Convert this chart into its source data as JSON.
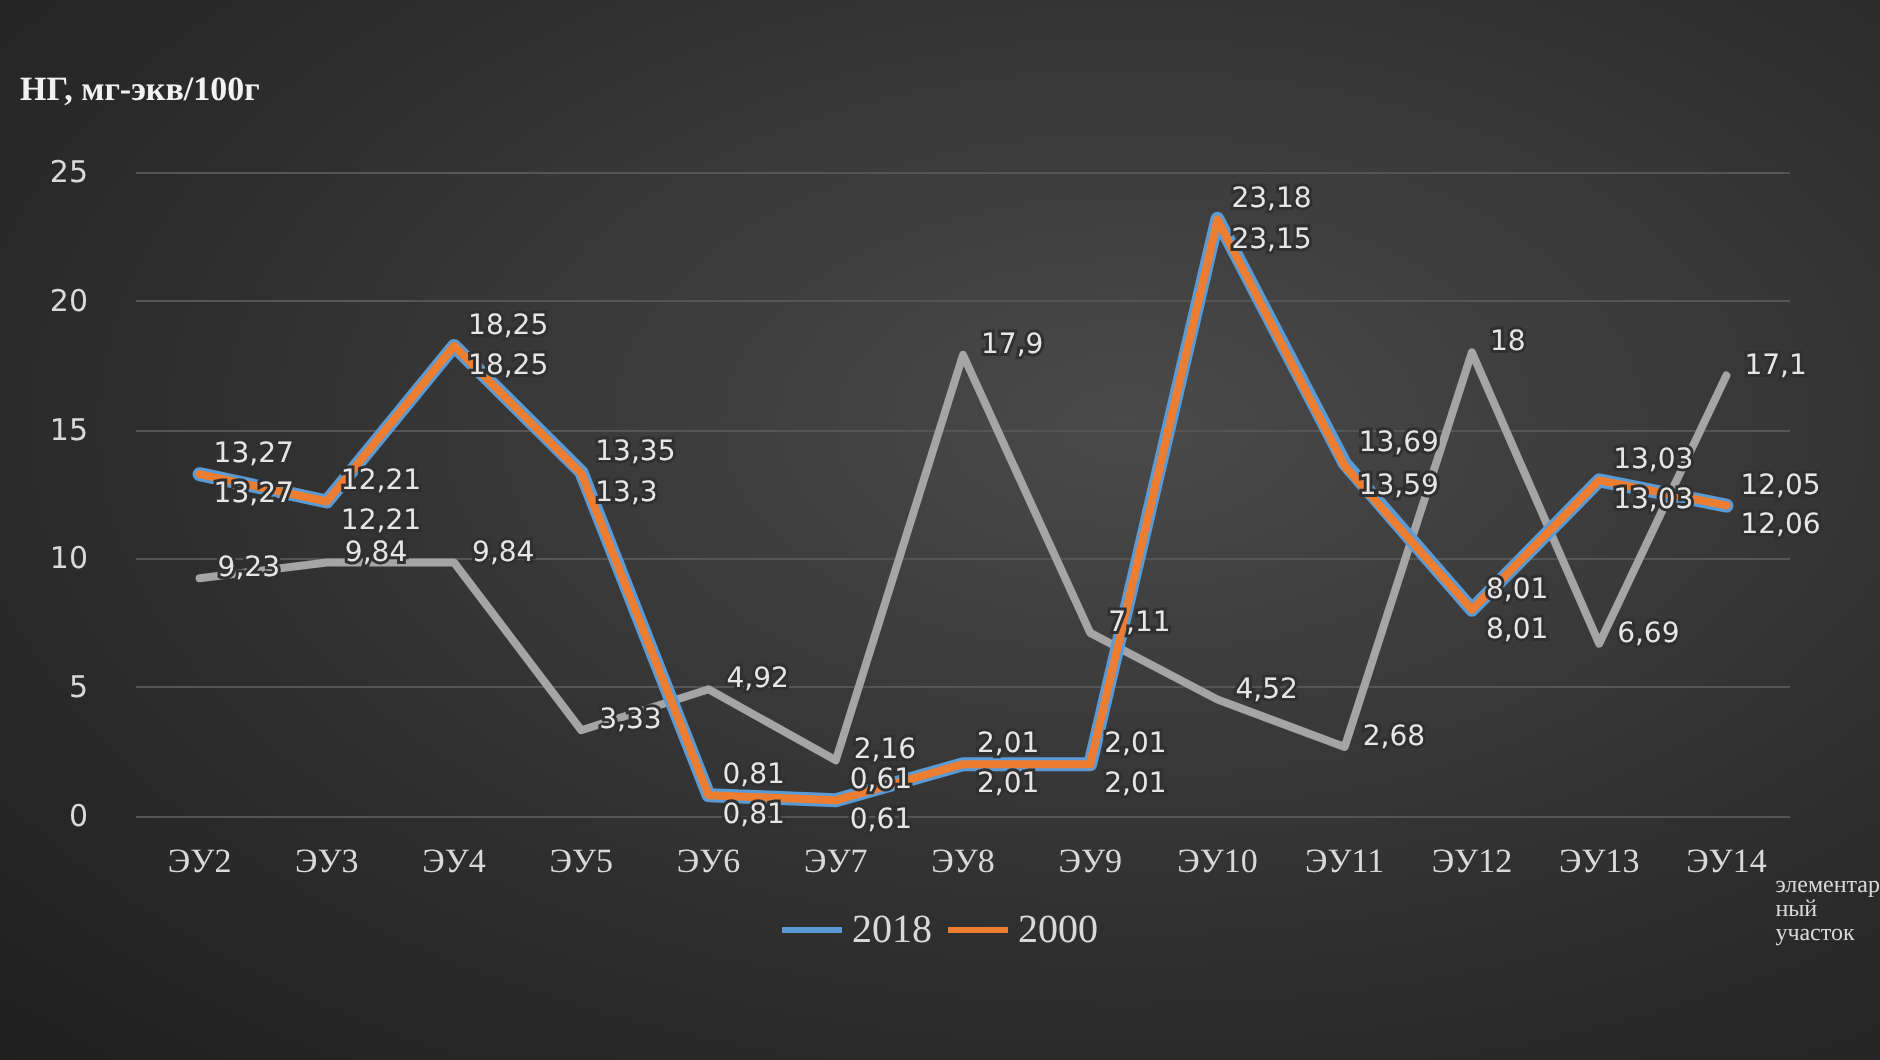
{
  "chart_data": {
    "type": "line",
    "ylabel": "НГ, мг-экв/100г",
    "xlabel": "элементарный участок",
    "categories": [
      "ЭУ2",
      "ЭУ3",
      "ЭУ4",
      "ЭУ5",
      "ЭУ6",
      "ЭУ7",
      "ЭУ8",
      "ЭУ9",
      "ЭУ10",
      "ЭУ11",
      "ЭУ12",
      "ЭУ13",
      "ЭУ14"
    ],
    "series": [
      {
        "color": "#a5a5a5",
        "values": [
          9.23,
          9.84,
          9.84,
          3.33,
          4.92,
          2.16,
          17.9,
          7.11,
          4.52,
          2.68,
          18,
          6.69,
          17.1
        ],
        "value_labels": [
          "9,23",
          "9,84",
          "9,84",
          "3,33",
          "4,92",
          "2,16",
          "17,9",
          "7,11",
          "4,52",
          "2,68",
          "18",
          "6,69",
          "17,1"
        ]
      },
      {
        "name": "2018",
        "color": "#5b9bd5",
        "values": [
          13.27,
          12.21,
          18.25,
          13.35,
          0.81,
          0.61,
          2.01,
          2.01,
          23.18,
          13.69,
          8.01,
          13.03,
          12.05
        ],
        "value_labels": [
          "13,27",
          "12,21",
          "18,25",
          "13,35",
          "0,81",
          "0,61",
          "2,01",
          "2,01",
          "23,18",
          "13,69",
          "8,01",
          "13,03",
          "12,05"
        ]
      },
      {
        "name": "2000",
        "color": "#ed7d31",
        "values": [
          13.27,
          12.21,
          18.25,
          13.3,
          0.81,
          0.61,
          2.01,
          2.01,
          23.15,
          13.59,
          8.01,
          13.03,
          12.06
        ],
        "value_labels": [
          "13,27",
          "12,21",
          "18,25",
          "13,3",
          "0,81",
          "0,61",
          "2,01",
          "2,01",
          "23,15",
          "13,59",
          "8,01",
          "13,03",
          "12,06"
        ]
      }
    ],
    "ylim": [
      0,
      25
    ],
    "yticks": [
      0,
      5,
      10,
      15,
      20,
      25
    ],
    "grid": "y",
    "legend": "bottom",
    "marker": "none",
    "line_style": "solid"
  }
}
